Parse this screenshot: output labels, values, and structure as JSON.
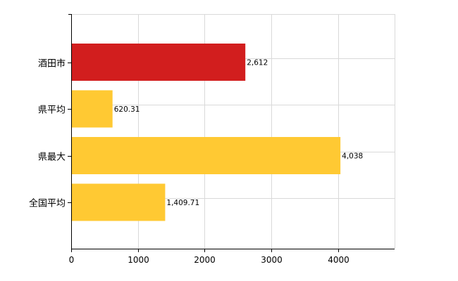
{
  "chart_data": {
    "type": "bar",
    "orientation": "horizontal",
    "categories": [
      "酒田市",
      "県平均",
      "県最大",
      "全国平均"
    ],
    "values": [
      2612,
      620.31,
      4038,
      1409.71
    ],
    "value_labels": [
      "2,612",
      "620.31",
      "4,038",
      "1,409.71"
    ],
    "bar_colors": [
      "#d21e1e",
      "#ffc933",
      "#ffc933",
      "#ffc933"
    ],
    "xlim": [
      0,
      4850
    ],
    "xticks": [
      0,
      1000,
      2000,
      3000,
      4000
    ],
    "xtick_labels": [
      "0",
      "1000",
      "2000",
      "3000",
      "4000"
    ],
    "grid": true,
    "legend": "none"
  }
}
